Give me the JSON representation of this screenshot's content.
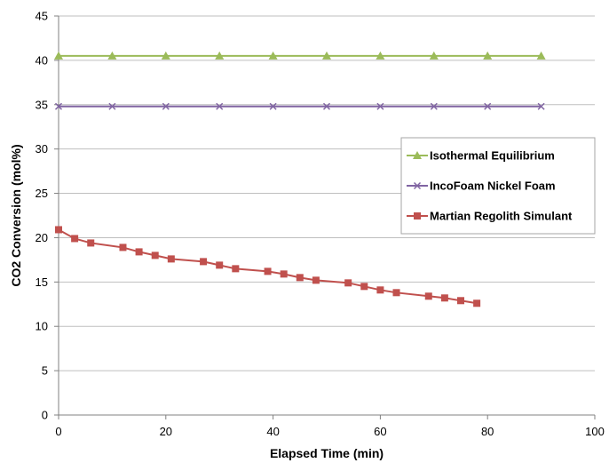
{
  "chart_data": {
    "type": "line",
    "title": "",
    "xlabel": "Elapsed Time (min)",
    "ylabel": "CO2 Conversion (mol%)",
    "xlim": [
      0,
      100
    ],
    "ylim": [
      0,
      45
    ],
    "x_ticks": [
      0,
      20,
      40,
      60,
      80,
      100
    ],
    "y_ticks": [
      0,
      5,
      10,
      15,
      20,
      25,
      30,
      35,
      40,
      45
    ],
    "grid": "horizontal",
    "legend_position": "right",
    "series": [
      {
        "name": "Isothermal Equilibrium",
        "color": "#9BBB59",
        "marker": "triangle",
        "x": [
          0,
          10,
          20,
          30,
          40,
          50,
          60,
          70,
          80,
          90
        ],
        "y": [
          40.5,
          40.5,
          40.5,
          40.5,
          40.5,
          40.5,
          40.5,
          40.5,
          40.5,
          40.5
        ]
      },
      {
        "name": "IncoFoam Nickel Foam",
        "color": "#8064A2",
        "marker": "x",
        "x": [
          0,
          10,
          20,
          30,
          40,
          50,
          60,
          70,
          80,
          90
        ],
        "y": [
          34.8,
          34.8,
          34.8,
          34.8,
          34.8,
          34.8,
          34.8,
          34.8,
          34.8,
          34.8
        ]
      },
      {
        "name": "Martian Regolith Simulant",
        "color": "#C0504D",
        "marker": "square",
        "x": [
          0,
          3,
          6,
          12,
          15,
          18,
          21,
          27,
          30,
          33,
          39,
          42,
          45,
          48,
          54,
          57,
          60,
          63,
          69,
          72,
          75,
          78
        ],
        "y": [
          20.9,
          19.9,
          19.4,
          18.9,
          18.4,
          18.0,
          17.6,
          17.3,
          16.9,
          16.5,
          16.2,
          15.9,
          15.5,
          15.2,
          14.9,
          14.5,
          14.1,
          13.8,
          13.4,
          13.2,
          12.9,
          12.6
        ]
      }
    ]
  }
}
